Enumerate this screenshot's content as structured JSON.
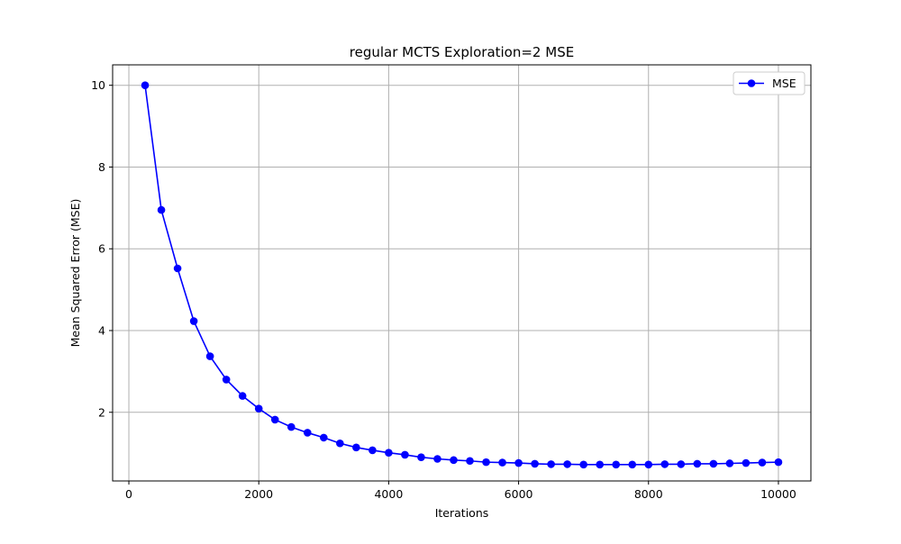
{
  "chart_data": {
    "type": "line",
    "title": "regular MCTS Exploration=2 MSE",
    "xlabel": "Iterations",
    "ylabel": "Mean Squared Error (MSE)",
    "xlim": [
      -250,
      10500
    ],
    "ylim": [
      0.32,
      10.5
    ],
    "xticks": [
      0,
      2000,
      4000,
      6000,
      8000,
      10000
    ],
    "xtick_labels": [
      "0",
      "2000",
      "4000",
      "6000",
      "8000",
      "10000"
    ],
    "yticks": [
      2,
      4,
      6,
      8,
      10
    ],
    "ytick_labels": [
      "2",
      "4",
      "6",
      "8",
      "10"
    ],
    "grid": true,
    "legend_position": "top-right",
    "series": [
      {
        "name": "MSE",
        "color": "#0000ff",
        "marker": "circle",
        "x": [
          250,
          500,
          750,
          1000,
          1250,
          1500,
          1750,
          2000,
          2250,
          2500,
          2750,
          3000,
          3250,
          3500,
          3750,
          4000,
          4250,
          4500,
          4750,
          5000,
          5250,
          5500,
          5750,
          6000,
          6250,
          6500,
          6750,
          7000,
          7250,
          7500,
          7750,
          8000,
          8250,
          8500,
          8750,
          9000,
          9250,
          9500,
          9750,
          10000
        ],
        "y": [
          10.0,
          6.95,
          5.52,
          4.23,
          3.37,
          2.8,
          2.4,
          2.09,
          1.82,
          1.64,
          1.5,
          1.38,
          1.24,
          1.14,
          1.07,
          1.01,
          0.96,
          0.9,
          0.86,
          0.83,
          0.81,
          0.78,
          0.77,
          0.76,
          0.74,
          0.73,
          0.73,
          0.72,
          0.72,
          0.72,
          0.72,
          0.72,
          0.73,
          0.73,
          0.74,
          0.74,
          0.75,
          0.76,
          0.77,
          0.78
        ]
      }
    ]
  }
}
